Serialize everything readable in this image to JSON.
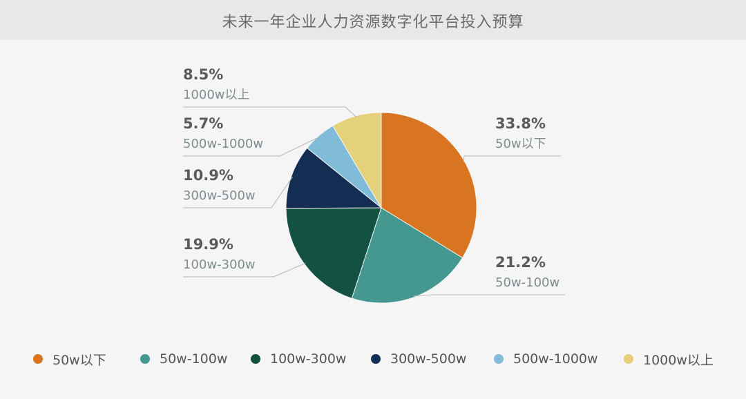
{
  "header": {
    "title": "未来一年企业人力资源数字化平台投入预算"
  },
  "chart_data": {
    "type": "pie",
    "title": "未来一年企业人力资源数字化平台投入预算",
    "categories": [
      "50w以下",
      "50w-100w",
      "100w-300w",
      "300w-500w",
      "500w-1000w",
      "1000w以上"
    ],
    "values": [
      33.8,
      21.2,
      19.9,
      10.9,
      5.7,
      8.5
    ],
    "value_labels": [
      "33.8%",
      "21.2%",
      "19.9%",
      "10.9%",
      "5.7%",
      "8.5%"
    ],
    "colors": [
      "#d97520",
      "#449890",
      "#135143",
      "#142d52",
      "#80bcd8",
      "#e5d179"
    ],
    "legend_position": "bottom",
    "start": "12 o'clock",
    "direction": "clockwise"
  }
}
